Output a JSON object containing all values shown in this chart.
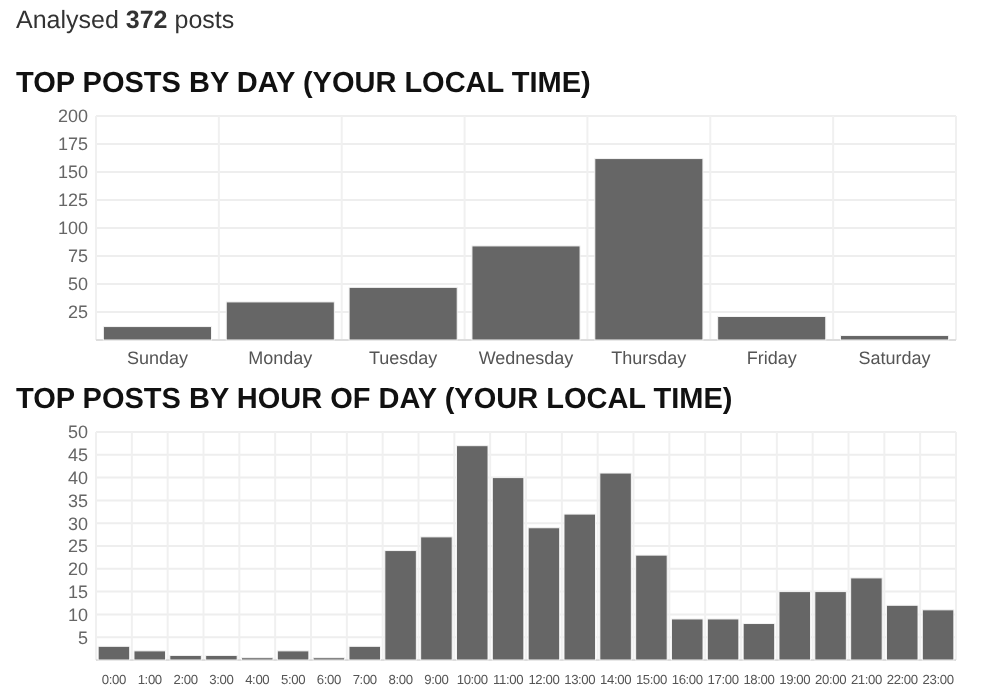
{
  "chart_data": [
    {
      "type": "bar",
      "title": "TOP POSTS BY DAY (YOUR LOCAL TIME)",
      "annotations": [
        "Analysed 372 posts"
      ],
      "categories": [
        "Sunday",
        "Monday",
        "Tuesday",
        "Wednesday",
        "Thursday",
        "Friday",
        "Saturday"
      ],
      "values": [
        12,
        34,
        47,
        84,
        162,
        21,
        4
      ],
      "color": "#666666",
      "ylim": [
        0,
        200
      ],
      "yticks": [
        25,
        50,
        75,
        100,
        125,
        150,
        175,
        200
      ],
      "grid": true
    },
    {
      "type": "bar",
      "title": "TOP POSTS BY HOUR OF DAY (YOUR LOCAL TIME)",
      "categories": [
        "0:00",
        "1:00",
        "2:00",
        "3:00",
        "4:00",
        "5:00",
        "6:00",
        "7:00",
        "8:00",
        "9:00",
        "10:00",
        "11:00",
        "12:00",
        "13:00",
        "14:00",
        "15:00",
        "16:00",
        "17:00",
        "18:00",
        "19:00",
        "20:00",
        "21:00",
        "22:00",
        "23:00"
      ],
      "values": [
        3,
        2,
        1,
        1,
        0.5,
        2,
        0.5,
        3,
        24,
        27,
        47,
        40,
        29,
        32,
        41,
        23,
        9,
        9,
        8,
        15,
        15,
        18,
        12,
        11
      ],
      "color": "#666666",
      "ylim": [
        0,
        50
      ],
      "yticks": [
        5,
        10,
        15,
        20,
        25,
        30,
        35,
        40,
        45,
        50
      ],
      "grid": true
    }
  ]
}
